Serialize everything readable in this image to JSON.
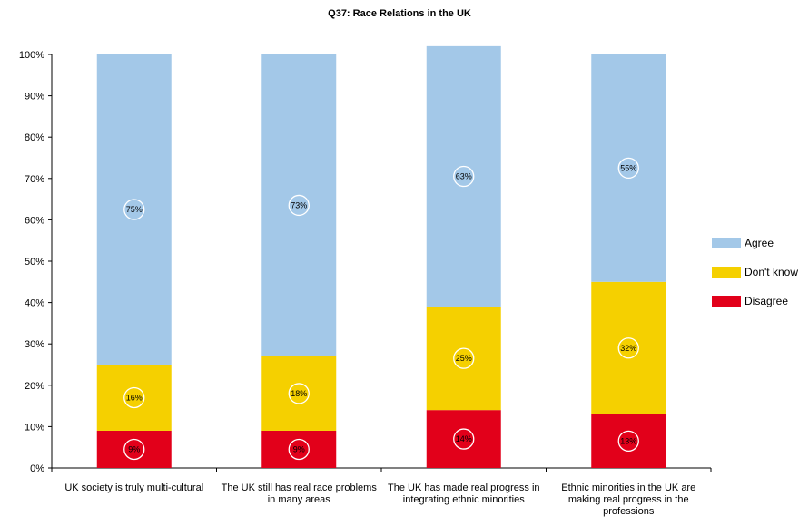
{
  "chart_data": {
    "type": "bar",
    "stacked": true,
    "title": "Q37: Race Relations in the UK",
    "xlabel": "",
    "ylabel": "",
    "ylim": [
      0,
      100
    ],
    "y_ticks": [
      "0%",
      "10%",
      "20%",
      "30%",
      "40%",
      "50%",
      "60%",
      "70%",
      "80%",
      "90%",
      "100%"
    ],
    "grid": false,
    "legend_position": "right",
    "categories": [
      [
        "UK society is truly multi-cultural"
      ],
      [
        "The UK still has real race problems",
        "in many areas"
      ],
      [
        "The UK has made real progress in",
        "integrating ethnic minorities"
      ],
      [
        "Ethnic minorities in the UK are",
        "making real progress in the",
        "professions"
      ]
    ],
    "series": [
      {
        "name": "Disagree",
        "color": "#e2001a",
        "values": [
          9,
          9,
          14,
          13
        ],
        "labels": [
          "9%",
          "9%",
          "14%",
          "13%"
        ]
      },
      {
        "name": "Don't know",
        "color": "#f5d000",
        "values": [
          16,
          18,
          25,
          32
        ],
        "labels": [
          "16%",
          "18%",
          "25%",
          "32%"
        ]
      },
      {
        "name": "Agree",
        "color": "#a3c8e8",
        "values": [
          75,
          73,
          63,
          55
        ],
        "labels": [
          "75%",
          "73%",
          "63%",
          "55%"
        ]
      }
    ],
    "legend_order": [
      "Agree",
      "Don't know",
      "Disagree"
    ]
  }
}
